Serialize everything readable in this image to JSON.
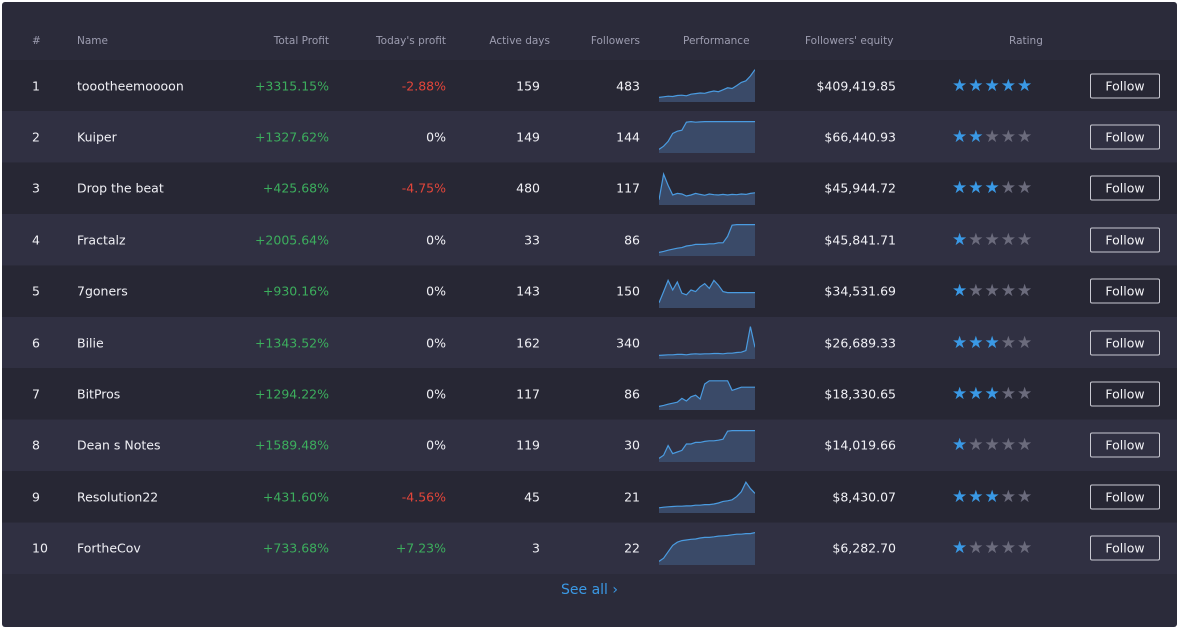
{
  "header": {
    "rank": "#",
    "name": "Name",
    "total_profit": "Total Profit",
    "todays_profit": "Today's profit",
    "active_days": "Active days",
    "followers": "Followers",
    "performance": "Performance",
    "followers_equity": "Followers' equity",
    "rating": "Rating"
  },
  "rows": [
    {
      "rank": "1",
      "name": "toootheemoooon",
      "total_profit": "+3315.15%",
      "todays_profit": "-2.88%",
      "profit_trend": "negative",
      "active_days": "159",
      "followers": "483",
      "equity": "$409,419.85",
      "rating": 5,
      "follow_label": "Follow",
      "performance": [
        0.08,
        0.1,
        0.12,
        0.11,
        0.14,
        0.15,
        0.13,
        0.18,
        0.2,
        0.22,
        0.21,
        0.25,
        0.28,
        0.26,
        0.32,
        0.38,
        0.36,
        0.45,
        0.55,
        0.6,
        0.75,
        0.95
      ]
    },
    {
      "rank": "2",
      "name": "Kuiper",
      "total_profit": "+1327.62%",
      "todays_profit": "0%",
      "profit_trend": "neutral",
      "active_days": "149",
      "followers": "144",
      "equity": "$66,440.93",
      "rating": 2,
      "follow_label": "Follow",
      "performance": [
        0.05,
        0.15,
        0.3,
        0.55,
        0.62,
        0.65,
        0.9,
        0.92,
        0.9,
        0.91,
        0.92,
        0.92,
        0.92,
        0.92,
        0.92,
        0.92,
        0.92,
        0.92,
        0.92,
        0.92,
        0.92,
        0.92
      ]
    },
    {
      "rank": "3",
      "name": "Drop the beat",
      "total_profit": "+425.68%",
      "todays_profit": "-4.75%",
      "profit_trend": "negative",
      "active_days": "480",
      "followers": "117",
      "equity": "$45,944.72",
      "rating": 3,
      "follow_label": "Follow",
      "performance": [
        0.1,
        0.9,
        0.55,
        0.25,
        0.3,
        0.28,
        0.22,
        0.25,
        0.3,
        0.27,
        0.24,
        0.28,
        0.26,
        0.25,
        0.27,
        0.25,
        0.27,
        0.26,
        0.28,
        0.27,
        0.3,
        0.32
      ]
    },
    {
      "rank": "4",
      "name": "Fractalz",
      "total_profit": "+2005.64%",
      "todays_profit": "0%",
      "profit_trend": "neutral",
      "active_days": "33",
      "followers": "86",
      "equity": "$45,841.71",
      "rating": 1,
      "follow_label": "Follow",
      "performance": [
        0.05,
        0.08,
        0.12,
        0.15,
        0.18,
        0.2,
        0.25,
        0.27,
        0.3,
        0.3,
        0.3,
        0.32,
        0.32,
        0.35,
        0.35,
        0.55,
        0.9,
        0.92,
        0.92,
        0.92,
        0.92,
        0.92
      ]
    },
    {
      "rank": "5",
      "name": "7goners",
      "total_profit": "+930.16%",
      "todays_profit": "0%",
      "profit_trend": "neutral",
      "active_days": "143",
      "followers": "150",
      "equity": "$34,531.69",
      "rating": 1,
      "follow_label": "Follow",
      "performance": [
        0.1,
        0.45,
        0.8,
        0.5,
        0.75,
        0.4,
        0.35,
        0.5,
        0.45,
        0.6,
        0.7,
        0.55,
        0.8,
        0.65,
        0.45,
        0.42,
        0.42,
        0.42,
        0.42,
        0.42,
        0.42,
        0.42
      ]
    },
    {
      "rank": "6",
      "name": "Bilie",
      "total_profit": "+1343.52%",
      "todays_profit": "0%",
      "profit_trend": "neutral",
      "active_days": "162",
      "followers": "340",
      "equity": "$26,689.33",
      "rating": 3,
      "follow_label": "Follow",
      "performance": [
        0.05,
        0.06,
        0.07,
        0.07,
        0.08,
        0.08,
        0.07,
        0.09,
        0.1,
        0.09,
        0.1,
        0.1,
        0.11,
        0.11,
        0.1,
        0.12,
        0.12,
        0.14,
        0.15,
        0.2,
        0.95,
        0.3
      ]
    },
    {
      "rank": "7",
      "name": "BitPros",
      "total_profit": "+1294.22%",
      "todays_profit": "0%",
      "profit_trend": "neutral",
      "active_days": "117",
      "followers": "86",
      "equity": "$18,330.65",
      "rating": 3,
      "follow_label": "Follow",
      "performance": [
        0.05,
        0.08,
        0.12,
        0.15,
        0.18,
        0.3,
        0.22,
        0.35,
        0.4,
        0.28,
        0.75,
        0.85,
        0.85,
        0.85,
        0.85,
        0.85,
        0.55,
        0.6,
        0.65,
        0.65,
        0.65,
        0.65
      ]
    },
    {
      "rank": "8",
      "name": "Dean s Notes",
      "total_profit": "+1589.48%",
      "todays_profit": "0%",
      "profit_trend": "neutral",
      "active_days": "119",
      "followers": "30",
      "equity": "$14,019.66",
      "rating": 1,
      "follow_label": "Follow",
      "performance": [
        0.05,
        0.15,
        0.45,
        0.2,
        0.25,
        0.3,
        0.5,
        0.5,
        0.55,
        0.55,
        0.58,
        0.6,
        0.6,
        0.62,
        0.65,
        0.9,
        0.92,
        0.92,
        0.92,
        0.92,
        0.92,
        0.92
      ]
    },
    {
      "rank": "9",
      "name": "Resolution22",
      "total_profit": "+431.60%",
      "todays_profit": "-4.56%",
      "profit_trend": "negative",
      "active_days": "45",
      "followers": "21",
      "equity": "$8,430.07",
      "rating": 3,
      "follow_label": "Follow",
      "performance": [
        0.1,
        0.12,
        0.13,
        0.14,
        0.15,
        0.15,
        0.16,
        0.16,
        0.18,
        0.18,
        0.2,
        0.2,
        0.22,
        0.25,
        0.3,
        0.32,
        0.35,
        0.45,
        0.6,
        0.9,
        0.7,
        0.55
      ]
    },
    {
      "rank": "10",
      "name": "FortheCov",
      "total_profit": "+733.68%",
      "todays_profit": "+7.23%",
      "profit_trend": "positive",
      "active_days": "3",
      "followers": "22",
      "equity": "$6,282.70",
      "rating": 1,
      "follow_label": "Follow",
      "performance": [
        0.05,
        0.15,
        0.35,
        0.55,
        0.65,
        0.7,
        0.72,
        0.74,
        0.75,
        0.78,
        0.8,
        0.8,
        0.82,
        0.84,
        0.85,
        0.86,
        0.88,
        0.9,
        0.9,
        0.92,
        0.92,
        0.95
      ]
    }
  ],
  "see_all": "See all ›",
  "colors": {
    "panel_bg": "#2b2b3a",
    "row_odd": "#272734",
    "row_even": "#303042",
    "positive": "#3cae5d",
    "negative": "#e2453a",
    "accent_blue": "#3a99e5",
    "star_off": "#6b6b7c",
    "spark_line": "#4a9be0",
    "spark_fill": "#3a4a68"
  }
}
